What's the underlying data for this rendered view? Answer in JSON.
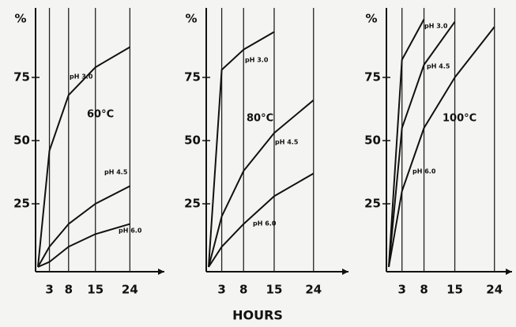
{
  "chart_data": [
    {
      "type": "line",
      "annotation": "60°C",
      "ylabel": "%",
      "xlim": [
        0,
        33
      ],
      "ylim": [
        0,
        100
      ],
      "xticks": [
        3,
        8,
        15,
        24
      ],
      "yticks": [
        25,
        50,
        75
      ],
      "grid": true,
      "x": [
        0,
        3,
        8,
        15,
        24
      ],
      "series": [
        {
          "name": "pH 3.0",
          "color": "#111111",
          "values": [
            0,
            46,
            68,
            79,
            87
          ]
        },
        {
          "name": "pH 4.5",
          "color": "#111111",
          "values": [
            0,
            8,
            17,
            25,
            32
          ]
        },
        {
          "name": "pH 6.0",
          "color": "#111111",
          "values": [
            0,
            2,
            8,
            13,
            17
          ]
        }
      ]
    },
    {
      "type": "line",
      "annotation": "80°C",
      "ylabel": "%",
      "xlabel": "HOURS",
      "xlim": [
        0,
        32
      ],
      "ylim": [
        0,
        100
      ],
      "xticks": [
        3,
        8,
        15,
        24
      ],
      "yticks": [
        25,
        50,
        75
      ],
      "grid": true,
      "x": [
        0,
        3,
        8,
        15,
        24
      ],
      "series": [
        {
          "name": "pH 3.0",
          "color": "#111111",
          "values": [
            0,
            78,
            86,
            93,
            null
          ]
        },
        {
          "name": "pH 4.5",
          "color": "#111111",
          "values": [
            0,
            20,
            38,
            53,
            66
          ]
        },
        {
          "name": "pH 6.0",
          "color": "#111111",
          "values": [
            0,
            8,
            17,
            28,
            37
          ]
        }
      ]
    },
    {
      "type": "line",
      "annotation": "100°C",
      "ylabel": "%",
      "xlim": [
        0,
        28
      ],
      "ylim": [
        0,
        100
      ],
      "xticks": [
        3,
        8,
        15,
        24
      ],
      "yticks": [
        25,
        50,
        75
      ],
      "grid": true,
      "x": [
        0,
        3,
        8,
        15,
        24
      ],
      "series": [
        {
          "name": "pH 3.0",
          "color": "#111111",
          "values": [
            0,
            82,
            98,
            null,
            null
          ]
        },
        {
          "name": "pH 4.5",
          "color": "#111111",
          "values": [
            0,
            55,
            80,
            97,
            null
          ]
        },
        {
          "name": "pH 6.0",
          "color": "#111111",
          "values": [
            0,
            30,
            55,
            75,
            95
          ]
        }
      ]
    }
  ]
}
